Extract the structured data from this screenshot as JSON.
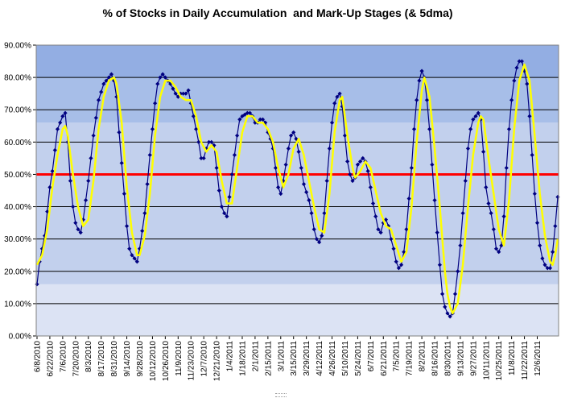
{
  "chart_data": {
    "type": "line",
    "title": "% of Stocks in Daily Accumulation  and Mark-Up Stages (& 5dma)",
    "xlabel": "",
    "ylabel": "",
    "ylim": [
      0,
      90
    ],
    "y_ticks": [
      "0.00%",
      "10.00%",
      "20.00%",
      "30.00%",
      "40.00%",
      "50.00%",
      "60.00%",
      "70.00%",
      "80.00%",
      "90.00%"
    ],
    "x_ticks": [
      "6/8/2010",
      "6/22/2010",
      "7/6/2010",
      "7/20/2010",
      "8/3/2010",
      "8/17/2010",
      "8/31/2010",
      "9/14/2010",
      "9/28/2010",
      "10/12/2010",
      "10/26/2010",
      "11/9/2010",
      "11/23/2010",
      "12/7/2010",
      "12/21/2010",
      "1/4/2011",
      "1/18/2011",
      "2/1/2011",
      "2/15/2011",
      "3/1/2011",
      "3/15/2011",
      "3/29/2011",
      "4/12/2011",
      "4/26/2011",
      "5/10/2011",
      "5/24/2011",
      "6/7/2011",
      "6/21/2011",
      "7/5/2011",
      "7/19/2011",
      "8/2/2011",
      "8/16/2011",
      "8/30/2011",
      "9/13/2011",
      "9/27/2011",
      "10/11/2011",
      "10/25/2011",
      "11/8/2011",
      "11/22/2011",
      "12/6/2011"
    ],
    "reference_line": {
      "value": 50,
      "color": "#ff0000"
    },
    "bands": [
      {
        "from": 0,
        "to": 16,
        "color": "#dce3f4"
      },
      {
        "from": 16,
        "to": 66,
        "color": "#c2d0ed"
      },
      {
        "from": 66,
        "to": 80,
        "color": "#a7bee8"
      },
      {
        "from": 80,
        "to": 90,
        "color": "#93aee3"
      }
    ],
    "grid": true,
    "legend": "none",
    "series": [
      {
        "color": "#000080",
        "marker": "diamond",
        "keyframes": [
          [
            0,
            16
          ],
          [
            1,
            23
          ],
          [
            2,
            27
          ],
          [
            3,
            31
          ],
          [
            5,
            46
          ],
          [
            6,
            51
          ],
          [
            8,
            64
          ],
          [
            10,
            68
          ],
          [
            11,
            69
          ],
          [
            12,
            60
          ],
          [
            13,
            48
          ],
          [
            14,
            40
          ],
          [
            15,
            35
          ],
          [
            16,
            33
          ],
          [
            17,
            32
          ],
          [
            18,
            36
          ],
          [
            20,
            48
          ],
          [
            22,
            62
          ],
          [
            24,
            73
          ],
          [
            26,
            78
          ],
          [
            28,
            80
          ],
          [
            29,
            81
          ],
          [
            30,
            79
          ],
          [
            31,
            74
          ],
          [
            32,
            63
          ],
          [
            34,
            44
          ],
          [
            35,
            34
          ],
          [
            36,
            27
          ],
          [
            37,
            25
          ],
          [
            38,
            24
          ],
          [
            39,
            23
          ],
          [
            40,
            27
          ],
          [
            42,
            38
          ],
          [
            44,
            56
          ],
          [
            46,
            72
          ],
          [
            47,
            78
          ],
          [
            48,
            80
          ],
          [
            49,
            81
          ],
          [
            50,
            80
          ],
          [
            52,
            78
          ],
          [
            54,
            75
          ],
          [
            55,
            74
          ],
          [
            56,
            75
          ],
          [
            58,
            75
          ],
          [
            59,
            76
          ],
          [
            60,
            72
          ],
          [
            62,
            64
          ],
          [
            63,
            60
          ],
          [
            64,
            55
          ],
          [
            65,
            55
          ],
          [
            66,
            58
          ],
          [
            67,
            60
          ],
          [
            68,
            60
          ],
          [
            69,
            59
          ],
          [
            70,
            52
          ],
          [
            71,
            45
          ],
          [
            72,
            40
          ],
          [
            73,
            38
          ],
          [
            74,
            37
          ],
          [
            75,
            43
          ],
          [
            76,
            50
          ],
          [
            78,
            62
          ],
          [
            79,
            67
          ],
          [
            80,
            68
          ],
          [
            82,
            69
          ],
          [
            83,
            69
          ],
          [
            84,
            68
          ],
          [
            85,
            66
          ],
          [
            86,
            66
          ],
          [
            87,
            67
          ],
          [
            88,
            67
          ],
          [
            89,
            66
          ],
          [
            90,
            63
          ],
          [
            91,
            61
          ],
          [
            92,
            58
          ],
          [
            93,
            52
          ],
          [
            94,
            46
          ],
          [
            95,
            44
          ],
          [
            96,
            48
          ],
          [
            98,
            58
          ],
          [
            99,
            62
          ],
          [
            100,
            63
          ],
          [
            101,
            61
          ],
          [
            102,
            57
          ],
          [
            103,
            52
          ],
          [
            104,
            47
          ],
          [
            106,
            42
          ],
          [
            107,
            38
          ],
          [
            108,
            33
          ],
          [
            109,
            30
          ],
          [
            110,
            29
          ],
          [
            111,
            31
          ],
          [
            112,
            38
          ],
          [
            114,
            58
          ],
          [
            115,
            66
          ],
          [
            116,
            72
          ],
          [
            117,
            74
          ],
          [
            118,
            75
          ],
          [
            119,
            71
          ],
          [
            120,
            62
          ],
          [
            121,
            54
          ],
          [
            122,
            50
          ],
          [
            123,
            48
          ],
          [
            124,
            49
          ],
          [
            125,
            53
          ],
          [
            126,
            54
          ],
          [
            127,
            55
          ],
          [
            128,
            54
          ],
          [
            129,
            51
          ],
          [
            130,
            46
          ],
          [
            131,
            41
          ],
          [
            132,
            37
          ],
          [
            133,
            33
          ],
          [
            134,
            32
          ],
          [
            135,
            35
          ],
          [
            136,
            36
          ],
          [
            137,
            34
          ],
          [
            138,
            30
          ],
          [
            139,
            27
          ],
          [
            140,
            23
          ],
          [
            141,
            21
          ],
          [
            142,
            22
          ],
          [
            143,
            26
          ],
          [
            144,
            33
          ],
          [
            146,
            52
          ],
          [
            147,
            64
          ],
          [
            148,
            73
          ],
          [
            149,
            79
          ],
          [
            150,
            82
          ],
          [
            151,
            80
          ],
          [
            152,
            73
          ],
          [
            153,
            64
          ],
          [
            154,
            53
          ],
          [
            155,
            42
          ],
          [
            156,
            32
          ],
          [
            157,
            22
          ],
          [
            158,
            13
          ],
          [
            159,
            9
          ],
          [
            160,
            7
          ],
          [
            161,
            6
          ],
          [
            162,
            7
          ],
          [
            163,
            13
          ],
          [
            164,
            20
          ],
          [
            165,
            28
          ],
          [
            166,
            38
          ],
          [
            167,
            48
          ],
          [
            168,
            58
          ],
          [
            169,
            64
          ],
          [
            170,
            67
          ],
          [
            171,
            68
          ],
          [
            172,
            69
          ],
          [
            173,
            67
          ],
          [
            174,
            57
          ],
          [
            175,
            46
          ],
          [
            176,
            41
          ],
          [
            177,
            38
          ],
          [
            178,
            33
          ],
          [
            179,
            27
          ],
          [
            180,
            26
          ],
          [
            181,
            28
          ],
          [
            182,
            37
          ],
          [
            183,
            52
          ],
          [
            184,
            64
          ],
          [
            185,
            73
          ],
          [
            186,
            79
          ],
          [
            187,
            83
          ],
          [
            188,
            85
          ],
          [
            189,
            85
          ],
          [
            190,
            82
          ],
          [
            191,
            78
          ],
          [
            192,
            68
          ],
          [
            193,
            56
          ],
          [
            194,
            44
          ],
          [
            195,
            35
          ],
          [
            196,
            28
          ],
          [
            197,
            24
          ],
          [
            198,
            22
          ],
          [
            199,
            21
          ],
          [
            200,
            21
          ],
          [
            201,
            26
          ],
          [
            202,
            34
          ],
          [
            203,
            43
          ]
        ]
      },
      {
        "color": "#ffff00",
        "marker": "none",
        "keyframes": [
          [
            0,
            22
          ],
          [
            2,
            25
          ],
          [
            4,
            33
          ],
          [
            6,
            46
          ],
          [
            8,
            56
          ],
          [
            10,
            64
          ],
          [
            11,
            65
          ],
          [
            12,
            62
          ],
          [
            14,
            50
          ],
          [
            16,
            40
          ],
          [
            18,
            34
          ],
          [
            20,
            36
          ],
          [
            22,
            48
          ],
          [
            24,
            64
          ],
          [
            26,
            74
          ],
          [
            28,
            79
          ],
          [
            30,
            80
          ],
          [
            31,
            78
          ],
          [
            33,
            66
          ],
          [
            35,
            46
          ],
          [
            37,
            32
          ],
          [
            39,
            25
          ],
          [
            40,
            25
          ],
          [
            42,
            31
          ],
          [
            44,
            44
          ],
          [
            46,
            62
          ],
          [
            48,
            74
          ],
          [
            50,
            79
          ],
          [
            52,
            79
          ],
          [
            54,
            77
          ],
          [
            56,
            74
          ],
          [
            58,
            73
          ],
          [
            60,
            73
          ],
          [
            62,
            68
          ],
          [
            64,
            60
          ],
          [
            66,
            57
          ],
          [
            68,
            59
          ],
          [
            70,
            57
          ],
          [
            72,
            48
          ],
          [
            74,
            41
          ],
          [
            76,
            41
          ],
          [
            78,
            52
          ],
          [
            80,
            63
          ],
          [
            82,
            68
          ],
          [
            84,
            68
          ],
          [
            86,
            66
          ],
          [
            88,
            66
          ],
          [
            90,
            64
          ],
          [
            92,
            60
          ],
          [
            94,
            52
          ],
          [
            96,
            46
          ],
          [
            98,
            50
          ],
          [
            100,
            58
          ],
          [
            102,
            61
          ],
          [
            104,
            56
          ],
          [
            106,
            48
          ],
          [
            108,
            40
          ],
          [
            110,
            33
          ],
          [
            112,
            32
          ],
          [
            114,
            44
          ],
          [
            116,
            63
          ],
          [
            118,
            73
          ],
          [
            119,
            74
          ],
          [
            121,
            62
          ],
          [
            123,
            52
          ],
          [
            124,
            49
          ],
          [
            126,
            51
          ],
          [
            128,
            54
          ],
          [
            130,
            52
          ],
          [
            132,
            45
          ],
          [
            134,
            38
          ],
          [
            136,
            34
          ],
          [
            138,
            33
          ],
          [
            140,
            28
          ],
          [
            142,
            23
          ],
          [
            144,
            26
          ],
          [
            146,
            40
          ],
          [
            148,
            60
          ],
          [
            150,
            76
          ],
          [
            151,
            80
          ],
          [
            153,
            74
          ],
          [
            155,
            58
          ],
          [
            157,
            40
          ],
          [
            159,
            20
          ],
          [
            160,
            13
          ],
          [
            161,
            9
          ],
          [
            162,
            7
          ],
          [
            164,
            10
          ],
          [
            166,
            22
          ],
          [
            168,
            40
          ],
          [
            170,
            56
          ],
          [
            172,
            66
          ],
          [
            173,
            68
          ],
          [
            174,
            67
          ],
          [
            176,
            55
          ],
          [
            178,
            44
          ],
          [
            180,
            33
          ],
          [
            182,
            28
          ],
          [
            184,
            42
          ],
          [
            186,
            64
          ],
          [
            188,
            79
          ],
          [
            190,
            84
          ],
          [
            192,
            79
          ],
          [
            194,
            62
          ],
          [
            196,
            44
          ],
          [
            198,
            31
          ],
          [
            200,
            23
          ],
          [
            201,
            22
          ],
          [
            202,
            25
          ],
          [
            203,
            30
          ]
        ]
      }
    ]
  }
}
